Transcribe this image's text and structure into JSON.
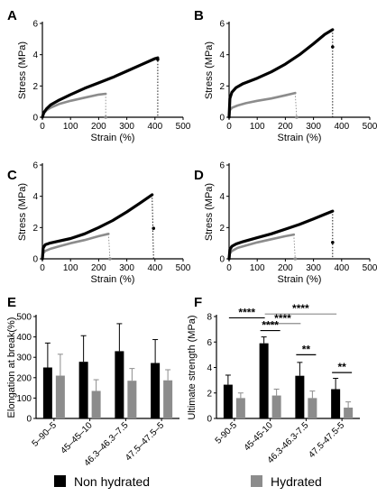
{
  "legend": {
    "items": [
      {
        "label": "Non hydrated",
        "color": "#000000"
      },
      {
        "label": "Hydrated",
        "color": "#8c8c8c"
      }
    ]
  },
  "chart_data": [
    {
      "panel": "A",
      "type": "line",
      "xlabel": "Strain (%)",
      "ylabel": "Stress (MPa)",
      "xlim": [
        0,
        500
      ],
      "ylim": [
        0,
        6
      ],
      "xticks": [
        "0",
        "100",
        "200",
        "300",
        "400",
        "500"
      ],
      "yticks": [
        "0",
        "2",
        "4",
        "6"
      ],
      "series": [
        {
          "color": "#000000",
          "x": [
            0,
            5,
            15,
            30,
            60,
            100,
            150,
            200,
            250,
            300,
            350,
            400,
            410
          ],
          "y": [
            0,
            0.3,
            0.55,
            0.8,
            1.1,
            1.45,
            1.85,
            2.2,
            2.55,
            2.95,
            3.35,
            3.75,
            3.8
          ],
          "break_x": 410,
          "break_y": 3.7
        },
        {
          "color": "#8c8c8c",
          "x": [
            0,
            5,
            15,
            30,
            60,
            100,
            150,
            200,
            225
          ],
          "y": [
            0,
            0.25,
            0.45,
            0.62,
            0.85,
            1.05,
            1.25,
            1.45,
            1.5
          ],
          "break_x": 225,
          "break_y": 0
        }
      ]
    },
    {
      "panel": "B",
      "type": "line",
      "xlabel": "Strain (%)",
      "ylabel": "Stress (MPa)",
      "xlim": [
        0,
        500
      ],
      "ylim": [
        0,
        6
      ],
      "xticks": [
        "0",
        "100",
        "200",
        "300",
        "400",
        "500"
      ],
      "yticks": [
        "0",
        "2",
        "4",
        "6"
      ],
      "series": [
        {
          "color": "#000000",
          "x": [
            0,
            3,
            10,
            25,
            50,
            100,
            150,
            200,
            250,
            300,
            340,
            368
          ],
          "y": [
            0,
            1.2,
            1.6,
            1.9,
            2.15,
            2.5,
            2.9,
            3.4,
            4.0,
            4.7,
            5.3,
            5.6
          ],
          "break_x": 368,
          "break_y": 4.5
        },
        {
          "color": "#8c8c8c",
          "x": [
            0,
            3,
            10,
            30,
            60,
            100,
            150,
            200,
            235
          ],
          "y": [
            0,
            0.45,
            0.6,
            0.75,
            0.9,
            1.05,
            1.2,
            1.4,
            1.55
          ],
          "break_x": 240,
          "break_y": 0
        }
      ]
    },
    {
      "panel": "C",
      "type": "line",
      "xlabel": "Strain (%)",
      "ylabel": "Stress (MPa)",
      "xlim": [
        0,
        500
      ],
      "ylim": [
        0,
        6
      ],
      "xticks": [
        "0",
        "100",
        "200",
        "300",
        "400",
        "500"
      ],
      "yticks": [
        "0",
        "2",
        "4",
        "6"
      ],
      "series": [
        {
          "color": "#000000",
          "x": [
            0,
            3,
            10,
            25,
            50,
            100,
            150,
            200,
            250,
            300,
            350,
            390
          ],
          "y": [
            0,
            0.7,
            0.9,
            1.0,
            1.1,
            1.3,
            1.6,
            2.0,
            2.45,
            3.0,
            3.6,
            4.1
          ],
          "break_x": 395,
          "break_y": 1.95
        },
        {
          "color": "#8c8c8c",
          "x": [
            0,
            3,
            10,
            30,
            60,
            100,
            150,
            200,
            235
          ],
          "y": [
            0,
            0.35,
            0.5,
            0.65,
            0.8,
            1.0,
            1.2,
            1.45,
            1.6
          ],
          "break_x": 240,
          "break_y": 0
        }
      ]
    },
    {
      "panel": "D",
      "type": "line",
      "xlabel": "Strain (%)",
      "ylabel": "Stress (MPa)",
      "xlim": [
        0,
        500
      ],
      "ylim": [
        0,
        6
      ],
      "xticks": [
        "0",
        "100",
        "200",
        "300",
        "400",
        "500"
      ],
      "yticks": [
        "0",
        "2",
        "4",
        "6"
      ],
      "series": [
        {
          "color": "#000000",
          "x": [
            0,
            3,
            10,
            25,
            50,
            100,
            150,
            200,
            250,
            300,
            340,
            368
          ],
          "y": [
            0,
            0.6,
            0.8,
            0.95,
            1.1,
            1.35,
            1.6,
            1.9,
            2.2,
            2.55,
            2.85,
            3.05
          ],
          "break_x": 368,
          "break_y": 1.05
        },
        {
          "color": "#8c8c8c",
          "x": [
            0,
            3,
            10,
            30,
            60,
            100,
            150,
            200,
            230
          ],
          "y": [
            0,
            0.35,
            0.5,
            0.7,
            0.85,
            1.05,
            1.25,
            1.45,
            1.55
          ],
          "break_x": 235,
          "break_y": 0
        }
      ]
    },
    {
      "panel": "E",
      "type": "bar",
      "ylabel": "Elongation at break(%)",
      "ylim": [
        0,
        500
      ],
      "yticks": [
        "0",
        "100",
        "200",
        "300",
        "400",
        "500"
      ],
      "categories": [
        "5–90–5",
        "45–45–10",
        "46.3–46.3–7.5",
        "47.5–47.5–5"
      ],
      "series": [
        {
          "color": "#000000",
          "values": [
            250,
            278,
            330,
            272
          ],
          "errors": [
            120,
            128,
            135,
            115
          ]
        },
        {
          "color": "#8c8c8c",
          "values": [
            210,
            135,
            185,
            187
          ],
          "errors": [
            105,
            55,
            60,
            52
          ]
        }
      ]
    },
    {
      "panel": "F",
      "type": "bar",
      "ylabel": "Ultimate strength (MPa)",
      "ylim": [
        0,
        8
      ],
      "yticks": [
        "0",
        "2",
        "4",
        "6",
        "8"
      ],
      "categories": [
        "5-90-5",
        "45-45-10",
        "46.3-46.3-7.5",
        "47.5-47.5-5"
      ],
      "series": [
        {
          "color": "#000000",
          "values": [
            2.65,
            5.9,
            3.35,
            2.3
          ],
          "errors": [
            0.75,
            0.5,
            1.05,
            0.85
          ]
        },
        {
          "color": "#8c8c8c",
          "values": [
            1.6,
            1.8,
            1.6,
            0.85
          ],
          "errors": [
            0.4,
            0.5,
            0.55,
            0.45
          ]
        }
      ],
      "annotations": [
        "****",
        "****",
        "****",
        "****",
        "**",
        "**"
      ]
    }
  ]
}
